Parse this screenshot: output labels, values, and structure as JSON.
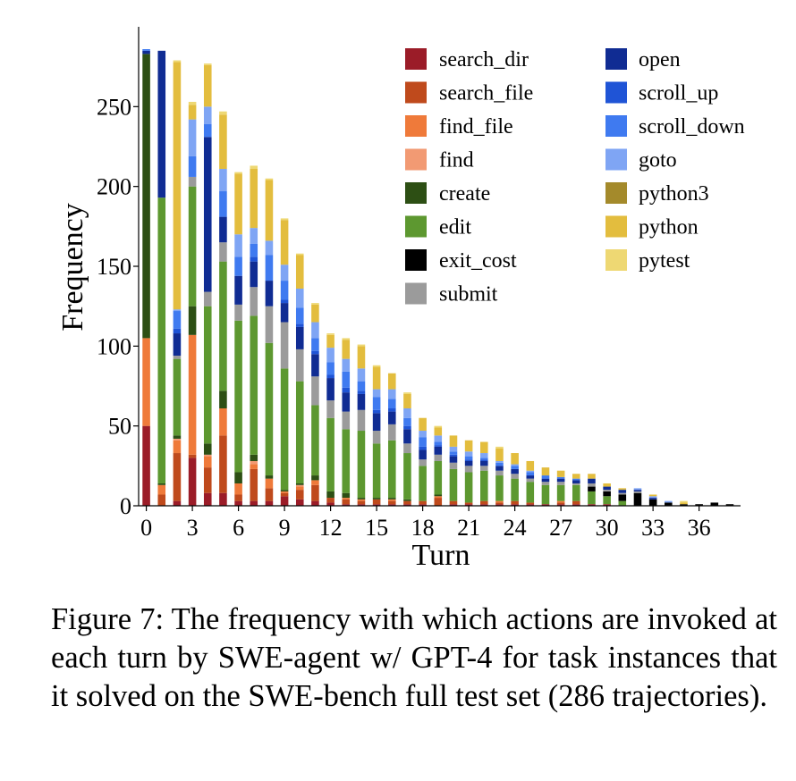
{
  "chart_data": {
    "type": "bar",
    "stacked": true,
    "title": "",
    "xlabel": "Turn",
    "ylabel": "Frequency",
    "ylim": [
      0,
      300
    ],
    "xlim": [
      -0.5,
      38.7
    ],
    "x_ticks": [
      0,
      3,
      6,
      9,
      12,
      15,
      18,
      21,
      24,
      27,
      30,
      33,
      36
    ],
    "y_ticks": [
      0,
      50,
      100,
      150,
      200,
      250
    ],
    "legend_position": "top-right",
    "legend_columns": 2,
    "series": [
      {
        "name": "search_dir",
        "color": "#9b1c28",
        "values": [
          50,
          0,
          3,
          30,
          8,
          8,
          3,
          3,
          3,
          6,
          4,
          3,
          2,
          1,
          1,
          1,
          1,
          1,
          1,
          0,
          1,
          1,
          1,
          1,
          1,
          1,
          1,
          1,
          1,
          1,
          1,
          0,
          0,
          0,
          0,
          0,
          0,
          0,
          0
        ]
      },
      {
        "name": "search_file",
        "color": "#bf4a1c",
        "values": [
          0,
          7,
          30,
          2,
          16,
          36,
          4,
          20,
          8,
          2,
          6,
          10,
          3,
          3,
          2,
          3,
          2,
          2,
          2,
          5,
          2,
          1,
          2,
          1,
          2,
          1,
          0,
          1,
          2,
          0,
          0,
          0,
          0,
          0,
          0,
          0,
          0,
          0,
          0
        ]
      },
      {
        "name": "find_file",
        "color": "#ef7a3a",
        "values": [
          55,
          6,
          8,
          75,
          7,
          17,
          7,
          3,
          6,
          1,
          2,
          3,
          0,
          1,
          1,
          0,
          1,
          0,
          0,
          1,
          0,
          0,
          0,
          1,
          0,
          0,
          0,
          1,
          0,
          0,
          0,
          0,
          0,
          0,
          0,
          0,
          0,
          0,
          0
        ]
      },
      {
        "name": "find",
        "color": "#f29a73",
        "values": [
          0,
          0,
          1,
          0,
          1,
          0,
          0,
          2,
          0,
          0,
          1,
          0,
          0,
          0,
          0,
          0,
          0,
          0,
          0,
          0,
          0,
          0,
          0,
          0,
          0,
          0,
          0,
          0,
          0,
          0,
          0,
          0,
          0,
          0,
          0,
          0,
          0,
          0,
          0
        ]
      },
      {
        "name": "create",
        "color": "#2d4f14",
        "values": [
          178,
          1,
          2,
          18,
          7,
          11,
          7,
          4,
          2,
          1,
          1,
          3,
          4,
          3,
          1,
          1,
          1,
          1,
          0,
          1,
          0,
          0,
          0,
          0,
          0,
          0,
          0,
          0,
          0,
          0,
          0,
          0,
          0,
          0,
          0,
          0,
          0,
          0,
          0
        ]
      },
      {
        "name": "edit",
        "color": "#5d9830",
        "values": [
          0,
          179,
          48,
          75,
          86,
          81,
          95,
          87,
          83,
          76,
          64,
          44,
          46,
          40,
          42,
          34,
          36,
          29,
          22,
          21,
          20,
          19,
          19,
          16,
          14,
          13,
          12,
          10,
          10,
          8,
          5,
          3,
          0,
          0,
          0,
          0,
          0,
          0,
          0
        ]
      },
      {
        "name": "exit_cost",
        "color": "#000000",
        "values": [
          0,
          0,
          0,
          0,
          0,
          0,
          0,
          0,
          0,
          0,
          0,
          0,
          0,
          0,
          0,
          0,
          0,
          0,
          0,
          0,
          0,
          0,
          0,
          0,
          0,
          0,
          0,
          0,
          0,
          3,
          3,
          4,
          8,
          4,
          2,
          1,
          1,
          2,
          1
        ]
      },
      {
        "name": "submit",
        "color": "#9b9b9b",
        "values": [
          0,
          0,
          2,
          6,
          9,
          12,
          10,
          18,
          23,
          29,
          20,
          18,
          11,
          11,
          13,
          8,
          10,
          6,
          4,
          4,
          4,
          4,
          3,
          3,
          3,
          2,
          2,
          2,
          1,
          2,
          1,
          1,
          1,
          0,
          0,
          0,
          0,
          0,
          0
        ]
      },
      {
        "name": "python3",
        "color": "#a48a2b",
        "values": [
          0,
          0,
          0,
          0,
          0,
          0,
          0,
          0,
          0,
          0,
          0,
          0,
          0,
          0,
          0,
          0,
          0,
          0,
          0,
          0,
          0,
          0,
          0,
          0,
          0,
          0,
          0,
          0,
          0,
          0,
          0,
          0,
          0,
          0,
          0,
          0,
          0,
          0,
          0
        ]
      },
      {
        "name": "open",
        "color": "#102c93",
        "values": [
          2,
          92,
          14,
          0,
          97,
          16,
          18,
          16,
          16,
          12,
          14,
          14,
          14,
          12,
          10,
          11,
          8,
          9,
          6,
          5,
          4,
          3,
          3,
          3,
          3,
          2,
          2,
          2,
          2,
          3,
          2,
          2,
          1,
          1,
          0,
          0,
          0,
          0,
          0
        ]
      },
      {
        "name": "scroll_up",
        "color": "#1f54d6",
        "values": [
          0,
          0,
          3,
          0,
          0,
          0,
          0,
          3,
          0,
          2,
          2,
          2,
          2,
          3,
          2,
          2,
          2,
          2,
          2,
          1,
          1,
          1,
          1,
          0,
          0,
          0,
          0,
          0,
          0,
          0,
          0,
          0,
          0,
          0,
          0,
          0,
          0,
          0,
          0
        ]
      },
      {
        "name": "scroll_down",
        "color": "#3f7af0",
        "values": [
          1,
          0,
          11,
          13,
          8,
          16,
          12,
          8,
          16,
          12,
          10,
          8,
          8,
          10,
          6,
          8,
          6,
          5,
          6,
          2,
          2,
          2,
          1,
          2,
          2,
          2,
          2,
          1,
          1,
          0,
          0,
          0,
          0,
          0,
          0,
          0,
          0,
          0,
          0
        ]
      },
      {
        "name": "goto",
        "color": "#7fa5f4",
        "values": [
          0,
          0,
          1,
          23,
          11,
          14,
          14,
          10,
          9,
          10,
          12,
          10,
          9,
          8,
          8,
          5,
          6,
          6,
          4,
          4,
          3,
          3,
          3,
          1,
          1,
          1,
          0,
          0,
          0,
          0,
          0,
          0,
          1,
          1,
          1,
          0,
          0,
          0,
          0
        ]
      },
      {
        "name": "python",
        "color": "#e3bd3e",
        "values": [
          0,
          0,
          155,
          9,
          26,
          34,
          38,
          37,
          38,
          28,
          21,
          11,
          8,
          12,
          14,
          14,
          10,
          9,
          8,
          5,
          7,
          7,
          7,
          8,
          7,
          6,
          5,
          4,
          3,
          3,
          2,
          1,
          0,
          1,
          0,
          1,
          0,
          0,
          0
        ]
      },
      {
        "name": "pytest",
        "color": "#eed873",
        "values": [
          0,
          0,
          1,
          2,
          1,
          2,
          1,
          2,
          1,
          1,
          1,
          1,
          1,
          1,
          1,
          1,
          0,
          1,
          0,
          1,
          0,
          0,
          0,
          1,
          0,
          0,
          0,
          0,
          0,
          0,
          0,
          0,
          0,
          0,
          0,
          1,
          0,
          0,
          0
        ]
      }
    ]
  },
  "caption": "Figure 7: The frequency with which actions are invoked at each turn by SWE-agent w/ GPT-4 for task instances that it solved on the SWE-bench full test set (286 trajectories)."
}
